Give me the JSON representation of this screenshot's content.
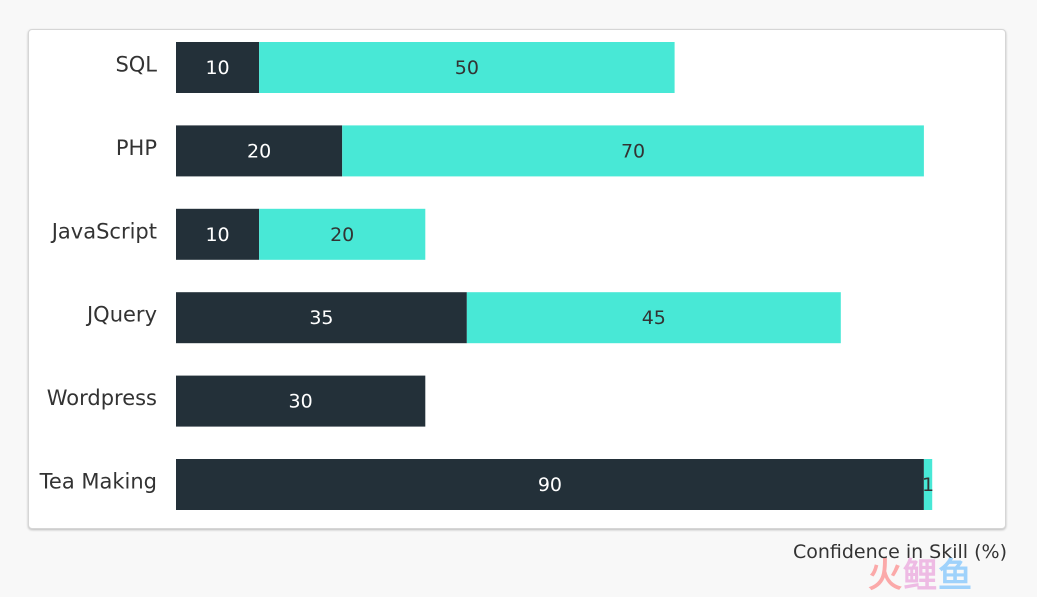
{
  "chart_data": {
    "type": "bar",
    "orientation": "horizontal",
    "stacked": true,
    "categories": [
      "SQL",
      "PHP",
      "JavaScript",
      "JQuery",
      "Wordpress",
      "Tea Making"
    ],
    "series": [
      {
        "values": [
          10,
          20,
          10,
          35,
          30,
          90
        ],
        "color": "#233039",
        "label_color": "#ffffff"
      },
      {
        "values": [
          50,
          70,
          20,
          45,
          0,
          1
        ],
        "color": "#48e8d6",
        "label_color": "#333333"
      }
    ],
    "xlabel": "Confidence in Skill (%)",
    "xlim": [
      0,
      100
    ],
    "grid": false,
    "legend": "none"
  },
  "watermark": {
    "text": [
      "火",
      "鲤",
      "鱼",
      ""
    ]
  }
}
